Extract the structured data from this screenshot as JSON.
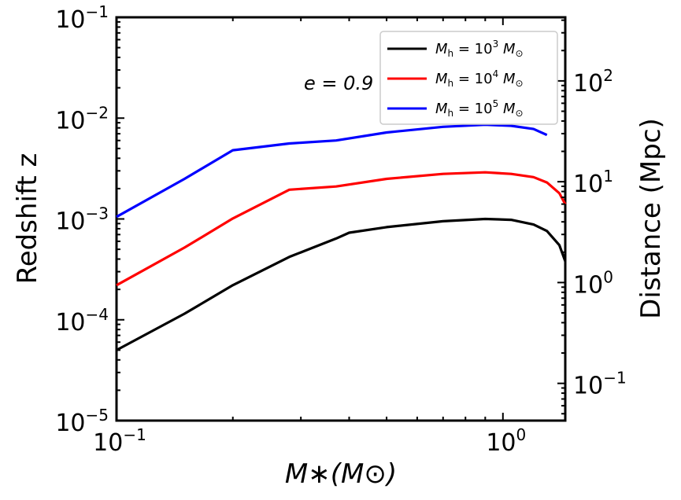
{
  "chart_data": {
    "type": "line",
    "x": [
      0.1,
      0.15,
      0.2,
      0.28,
      0.37,
      0.5,
      0.7,
      0.9,
      1.05,
      1.2,
      1.3,
      1.4,
      1.45
    ],
    "xlim": [
      0.1,
      1.45
    ],
    "ylim": [
      1e-05,
      0.1
    ],
    "xscale": "log",
    "yscale": "log",
    "xlabel": "M∗(M⊙)",
    "ylabel": "Redshift z",
    "ylabel_right": "Distance (Mpc)",
    "x_ticks": [
      {
        "value": 0.1,
        "base": "10",
        "exp": "−1"
      },
      {
        "value": 1.0,
        "base": "10",
        "exp": "0"
      }
    ],
    "y_ticks": [
      {
        "value": 1e-05,
        "base": "10",
        "exp": "−5"
      },
      {
        "value": 0.0001,
        "base": "10",
        "exp": "−4"
      },
      {
        "value": 0.001,
        "base": "10",
        "exp": "−3"
      },
      {
        "value": 0.01,
        "base": "10",
        "exp": "−2"
      },
      {
        "value": 0.1,
        "base": "10",
        "exp": "−1"
      }
    ],
    "y_right_ticks": [
      {
        "value_z": 2.34e-05,
        "base": "10",
        "exp": "−1"
      },
      {
        "value_z": 0.000234,
        "base": "10",
        "exp": "0"
      },
      {
        "value_z": 0.00234,
        "base": "10",
        "exp": "1"
      },
      {
        "value_z": 0.0234,
        "base": "10",
        "exp": "2"
      }
    ],
    "annotation": {
      "text": "e = 0.9"
    },
    "legend_position": "top-right",
    "grid": false,
    "series": [
      {
        "name": "Mh = 10^3 M⊙",
        "legend": {
          "sym": "M",
          "sub": "h",
          "eq": " = 10",
          "exp": "3",
          "unit_sym": "M",
          "unit_sub": "⊙"
        },
        "color": "#000000",
        "points": [
          [
            0.1,
            5e-05
          ],
          [
            0.15,
            0.000115
          ],
          [
            0.2,
            0.00022
          ],
          [
            0.28,
            0.00042
          ],
          [
            0.37,
            0.00064
          ],
          [
            0.4,
            0.00073
          ],
          [
            0.5,
            0.00083
          ],
          [
            0.7,
            0.00095
          ],
          [
            0.9,
            0.001
          ],
          [
            1.05,
            0.00098
          ],
          [
            1.2,
            0.00088
          ],
          [
            1.3,
            0.00076
          ],
          [
            1.4,
            0.00055
          ],
          [
            1.45,
            0.00038
          ]
        ]
      },
      {
        "name": "Mh = 10^4 M⊙",
        "legend": {
          "sym": "M",
          "sub": "h",
          "eq": " = 10",
          "exp": "4",
          "unit_sym": "M",
          "unit_sub": "⊙"
        },
        "color": "#ff0000",
        "points": [
          [
            0.1,
            0.00022
          ],
          [
            0.15,
            0.00052
          ],
          [
            0.2,
            0.00101
          ],
          [
            0.28,
            0.00195
          ],
          [
            0.37,
            0.0021
          ],
          [
            0.5,
            0.0025
          ],
          [
            0.7,
            0.0028
          ],
          [
            0.9,
            0.0029
          ],
          [
            1.05,
            0.0028
          ],
          [
            1.2,
            0.0026
          ],
          [
            1.3,
            0.0023
          ],
          [
            1.4,
            0.0018
          ],
          [
            1.45,
            0.0014
          ]
        ]
      },
      {
        "name": "Mh = 10^5 M⊙",
        "legend": {
          "sym": "M",
          "sub": "h",
          "eq": " = 10",
          "exp": "5",
          "unit_sym": "M",
          "unit_sub": "⊙"
        },
        "color": "#0000ff",
        "points": [
          [
            0.1,
            0.00105
          ],
          [
            0.15,
            0.0025
          ],
          [
            0.2,
            0.0048
          ],
          [
            0.28,
            0.0056
          ],
          [
            0.37,
            0.006
          ],
          [
            0.5,
            0.0072
          ],
          [
            0.7,
            0.0082
          ],
          [
            0.9,
            0.0086
          ],
          [
            1.05,
            0.0084
          ],
          [
            1.2,
            0.0078
          ],
          [
            1.3,
            0.0068
          ]
        ]
      }
    ]
  }
}
